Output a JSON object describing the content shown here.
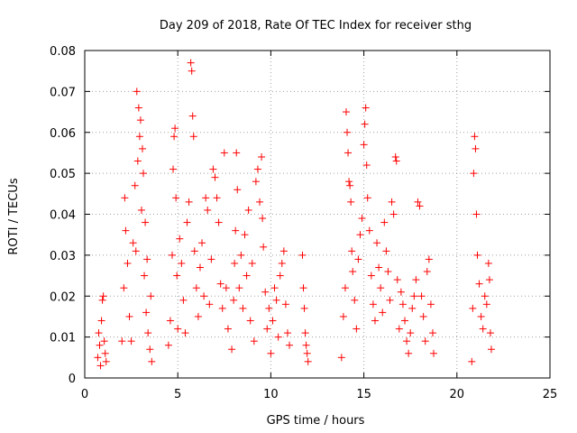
{
  "chart_data": {
    "type": "scatter",
    "title": "Day 209 of 2018, Rate Of TEC Index for receiver sthg",
    "xlabel": "GPS time / hours",
    "ylabel": "ROTI / TECUs",
    "xlim": [
      0,
      25
    ],
    "ylim": [
      0,
      0.08
    ],
    "xticks": [
      0,
      5,
      10,
      15,
      20,
      25
    ],
    "xtick_labels": [
      "0",
      "5",
      "10",
      "15",
      "20",
      "25"
    ],
    "yticks": [
      0,
      0.01,
      0.02,
      0.03,
      0.04,
      0.05,
      0.06,
      0.07,
      0.08
    ],
    "ytick_labels": [
      "0",
      "0.01",
      "0.02",
      "0.03",
      "0.04",
      "0.05",
      "0.06",
      "0.07",
      "0.08"
    ],
    "grid": true,
    "marker": "+",
    "color": "#ff0000",
    "series": [
      {
        "name": "ROTI",
        "points": [
          [
            0.7,
            0.005
          ],
          [
            0.75,
            0.011
          ],
          [
            0.8,
            0.008
          ],
          [
            0.85,
            0.003
          ],
          [
            0.9,
            0.014
          ],
          [
            0.95,
            0.019
          ],
          [
            1.0,
            0.02
          ],
          [
            1.05,
            0.009
          ],
          [
            1.1,
            0.006
          ],
          [
            1.15,
            0.004
          ],
          [
            2.0,
            0.009
          ],
          [
            2.1,
            0.022
          ],
          [
            2.15,
            0.044
          ],
          [
            2.2,
            0.036
          ],
          [
            2.3,
            0.028
          ],
          [
            2.4,
            0.015
          ],
          [
            2.5,
            0.009
          ],
          [
            2.6,
            0.033
          ],
          [
            2.7,
            0.047
          ],
          [
            2.75,
            0.031
          ],
          [
            2.8,
            0.07
          ],
          [
            2.85,
            0.053
          ],
          [
            2.9,
            0.066
          ],
          [
            2.95,
            0.059
          ],
          [
            3.0,
            0.063
          ],
          [
            3.05,
            0.041
          ],
          [
            3.1,
            0.056
          ],
          [
            3.15,
            0.05
          ],
          [
            3.2,
            0.025
          ],
          [
            3.25,
            0.038
          ],
          [
            3.3,
            0.016
          ],
          [
            3.35,
            0.029
          ],
          [
            3.4,
            0.011
          ],
          [
            3.5,
            0.007
          ],
          [
            3.55,
            0.02
          ],
          [
            3.6,
            0.004
          ],
          [
            4.5,
            0.008
          ],
          [
            4.6,
            0.014
          ],
          [
            4.7,
            0.03
          ],
          [
            4.75,
            0.051
          ],
          [
            4.8,
            0.059
          ],
          [
            4.85,
            0.061
          ],
          [
            4.9,
            0.044
          ],
          [
            4.95,
            0.025
          ],
          [
            5.0,
            0.012
          ],
          [
            5.1,
            0.034
          ],
          [
            5.2,
            0.028
          ],
          [
            5.3,
            0.019
          ],
          [
            5.4,
            0.011
          ],
          [
            5.5,
            0.038
          ],
          [
            5.6,
            0.043
          ],
          [
            5.7,
            0.077
          ],
          [
            5.75,
            0.075
          ],
          [
            5.8,
            0.064
          ],
          [
            5.85,
            0.059
          ],
          [
            5.9,
            0.031
          ],
          [
            6.0,
            0.022
          ],
          [
            6.1,
            0.015
          ],
          [
            6.2,
            0.027
          ],
          [
            6.3,
            0.033
          ],
          [
            6.4,
            0.02
          ],
          [
            6.5,
            0.044
          ],
          [
            6.6,
            0.041
          ],
          [
            6.7,
            0.018
          ],
          [
            6.8,
            0.029
          ],
          [
            6.9,
            0.051
          ],
          [
            7.0,
            0.049
          ],
          [
            7.1,
            0.044
          ],
          [
            7.2,
            0.038
          ],
          [
            7.3,
            0.023
          ],
          [
            7.4,
            0.017
          ],
          [
            7.5,
            0.055
          ],
          [
            7.6,
            0.022
          ],
          [
            7.7,
            0.012
          ],
          [
            7.9,
            0.007
          ],
          [
            8.0,
            0.019
          ],
          [
            8.05,
            0.028
          ],
          [
            8.1,
            0.036
          ],
          [
            8.15,
            0.055
          ],
          [
            8.2,
            0.046
          ],
          [
            8.3,
            0.022
          ],
          [
            8.4,
            0.03
          ],
          [
            8.5,
            0.017
          ],
          [
            8.6,
            0.035
          ],
          [
            8.7,
            0.025
          ],
          [
            8.8,
            0.041
          ],
          [
            8.9,
            0.014
          ],
          [
            9.0,
            0.028
          ],
          [
            9.1,
            0.009
          ],
          [
            9.2,
            0.048
          ],
          [
            9.3,
            0.051
          ],
          [
            9.4,
            0.043
          ],
          [
            9.5,
            0.054
          ],
          [
            9.55,
            0.039
          ],
          [
            9.6,
            0.032
          ],
          [
            9.7,
            0.021
          ],
          [
            9.8,
            0.012
          ],
          [
            9.9,
            0.017
          ],
          [
            10.0,
            0.006
          ],
          [
            10.1,
            0.014
          ],
          [
            10.2,
            0.022
          ],
          [
            10.3,
            0.019
          ],
          [
            10.4,
            0.01
          ],
          [
            10.5,
            0.025
          ],
          [
            10.6,
            0.028
          ],
          [
            10.7,
            0.031
          ],
          [
            10.8,
            0.018
          ],
          [
            10.9,
            0.011
          ],
          [
            11.0,
            0.008
          ],
          [
            11.7,
            0.03
          ],
          [
            11.75,
            0.022
          ],
          [
            11.8,
            0.017
          ],
          [
            11.85,
            0.011
          ],
          [
            11.9,
            0.008
          ],
          [
            11.95,
            0.006
          ],
          [
            12.0,
            0.004
          ],
          [
            13.8,
            0.005
          ],
          [
            13.9,
            0.015
          ],
          [
            14.0,
            0.022
          ],
          [
            14.05,
            0.065
          ],
          [
            14.1,
            0.06
          ],
          [
            14.15,
            0.055
          ],
          [
            14.2,
            0.048
          ],
          [
            14.25,
            0.047
          ],
          [
            14.3,
            0.043
          ],
          [
            14.35,
            0.031
          ],
          [
            14.4,
            0.026
          ],
          [
            14.5,
            0.019
          ],
          [
            14.6,
            0.012
          ],
          [
            14.7,
            0.029
          ],
          [
            14.8,
            0.035
          ],
          [
            14.9,
            0.039
          ],
          [
            15.0,
            0.057
          ],
          [
            15.05,
            0.062
          ],
          [
            15.1,
            0.066
          ],
          [
            15.15,
            0.052
          ],
          [
            15.2,
            0.044
          ],
          [
            15.3,
            0.036
          ],
          [
            15.4,
            0.025
          ],
          [
            15.5,
            0.018
          ],
          [
            15.6,
            0.014
          ],
          [
            15.7,
            0.033
          ],
          [
            15.8,
            0.027
          ],
          [
            15.9,
            0.022
          ],
          [
            16.0,
            0.016
          ],
          [
            16.1,
            0.038
          ],
          [
            16.2,
            0.031
          ],
          [
            16.3,
            0.026
          ],
          [
            16.4,
            0.019
          ],
          [
            16.5,
            0.043
          ],
          [
            16.6,
            0.04
          ],
          [
            16.7,
            0.054
          ],
          [
            16.75,
            0.053
          ],
          [
            16.8,
            0.024
          ],
          [
            16.9,
            0.012
          ],
          [
            17.0,
            0.021
          ],
          [
            17.1,
            0.018
          ],
          [
            17.2,
            0.014
          ],
          [
            17.3,
            0.009
          ],
          [
            17.4,
            0.006
          ],
          [
            17.5,
            0.011
          ],
          [
            17.6,
            0.017
          ],
          [
            17.7,
            0.02
          ],
          [
            17.8,
            0.024
          ],
          [
            17.9,
            0.043
          ],
          [
            18.0,
            0.042
          ],
          [
            18.1,
            0.02
          ],
          [
            18.2,
            0.015
          ],
          [
            18.3,
            0.009
          ],
          [
            18.4,
            0.026
          ],
          [
            18.5,
            0.029
          ],
          [
            18.6,
            0.018
          ],
          [
            18.7,
            0.011
          ],
          [
            18.75,
            0.006
          ],
          [
            20.8,
            0.004
          ],
          [
            20.85,
            0.017
          ],
          [
            20.9,
            0.05
          ],
          [
            20.95,
            0.059
          ],
          [
            21.0,
            0.056
          ],
          [
            21.05,
            0.04
          ],
          [
            21.1,
            0.03
          ],
          [
            21.2,
            0.023
          ],
          [
            21.3,
            0.015
          ],
          [
            21.4,
            0.012
          ],
          [
            21.5,
            0.02
          ],
          [
            21.6,
            0.018
          ],
          [
            21.7,
            0.028
          ],
          [
            21.75,
            0.024
          ],
          [
            21.8,
            0.011
          ],
          [
            21.85,
            0.007
          ]
        ]
      }
    ]
  }
}
